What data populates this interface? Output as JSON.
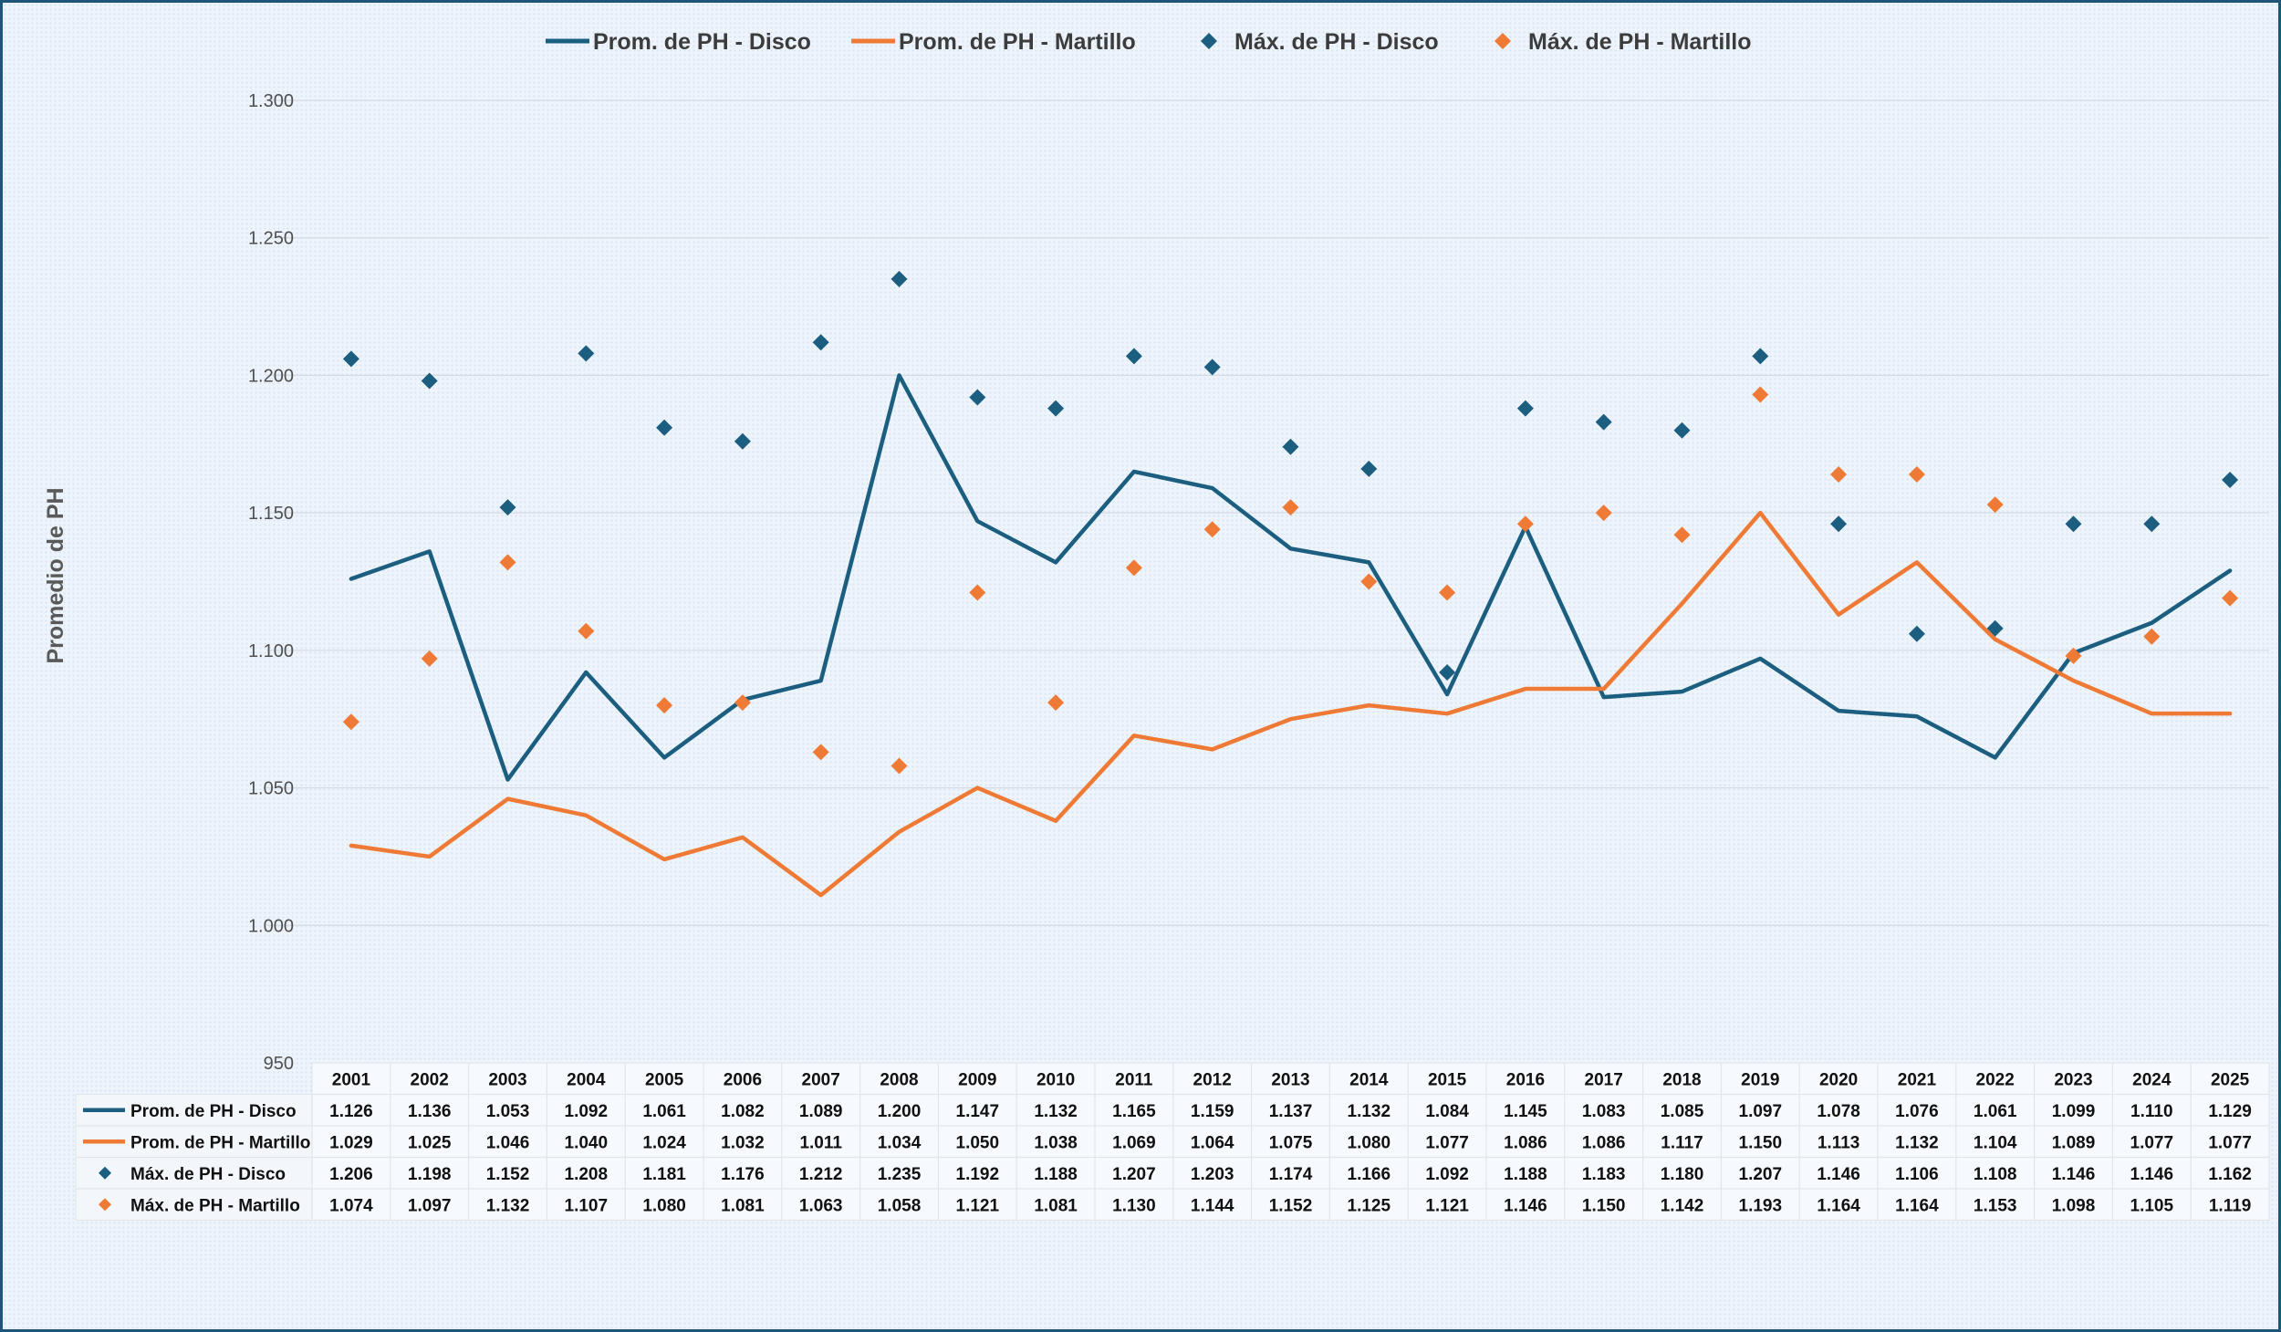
{
  "colors": {
    "disco": "#1c5e80",
    "martillo": "#ef7a35",
    "grid": "#d6dbe1",
    "frame_border": "#1f5577"
  },
  "chart_data": {
    "type": "line",
    "title": "",
    "xlabel": "",
    "ylabel": "Promedio de PH",
    "ylim": [
      950,
      1300
    ],
    "y_ticks": [
      "950",
      "1.000",
      "1.050",
      "1.100",
      "1.150",
      "1.200",
      "1.250",
      "1.300"
    ],
    "y_tick_values": [
      950,
      1000,
      1050,
      1100,
      1150,
      1200,
      1250,
      1300
    ],
    "grid": true,
    "legend_position": "top",
    "categories": [
      "2001",
      "2002",
      "2003",
      "2004",
      "2005",
      "2006",
      "2007",
      "2008",
      "2009",
      "2010",
      "2011",
      "2012",
      "2013",
      "2014",
      "2015",
      "2016",
      "2017",
      "2018",
      "2019",
      "2020",
      "2021",
      "2022",
      "2023",
      "2024",
      "2025"
    ],
    "series": [
      {
        "name": "Prom. de PH - Disco",
        "type": "line",
        "color": "#1c5e80",
        "marker": "none",
        "values": [
          1126,
          1136,
          1053,
          1092,
          1061,
          1082,
          1089,
          1200,
          1147,
          1132,
          1165,
          1159,
          1137,
          1132,
          1084,
          1145,
          1083,
          1085,
          1097,
          1078,
          1076,
          1061,
          1099,
          1110,
          1129
        ],
        "labels": [
          "1.126",
          "1.136",
          "1.053",
          "1.092",
          "1.061",
          "1.082",
          "1.089",
          "1.200",
          "1.147",
          "1.132",
          "1.165",
          "1.159",
          "1.137",
          "1.132",
          "1.084",
          "1.145",
          "1.083",
          "1.085",
          "1.097",
          "1.078",
          "1.076",
          "1.061",
          "1.099",
          "1.110",
          "1.129"
        ]
      },
      {
        "name": "Prom. de PH - Martillo",
        "type": "line",
        "color": "#ef7a35",
        "marker": "none",
        "values": [
          1029,
          1025,
          1046,
          1040,
          1024,
          1032,
          1011,
          1034,
          1050,
          1038,
          1069,
          1064,
          1075,
          1080,
          1077,
          1086,
          1086,
          1117,
          1150,
          1113,
          1132,
          1104,
          1089,
          1077,
          1077
        ],
        "labels": [
          "1.029",
          "1.025",
          "1.046",
          "1.040",
          "1.024",
          "1.032",
          "1.011",
          "1.034",
          "1.050",
          "1.038",
          "1.069",
          "1.064",
          "1.075",
          "1.080",
          "1.077",
          "1.086",
          "1.086",
          "1.117",
          "1.150",
          "1.113",
          "1.132",
          "1.104",
          "1.089",
          "1.077",
          "1.077"
        ]
      },
      {
        "name": "Máx. de PH - Disco",
        "type": "scatter",
        "color": "#1c5e80",
        "marker": "diamond",
        "values": [
          1206,
          1198,
          1152,
          1208,
          1181,
          1176,
          1212,
          1235,
          1192,
          1188,
          1207,
          1203,
          1174,
          1166,
          1092,
          1188,
          1183,
          1180,
          1207,
          1146,
          1106,
          1108,
          1146,
          1146,
          1162
        ],
        "labels": [
          "1.206",
          "1.198",
          "1.152",
          "1.208",
          "1.181",
          "1.176",
          "1.212",
          "1.235",
          "1.192",
          "1.188",
          "1.207",
          "1.203",
          "1.174",
          "1.166",
          "1.092",
          "1.188",
          "1.183",
          "1.180",
          "1.207",
          "1.146",
          "1.106",
          "1.108",
          "1.146",
          "1.146",
          "1.162"
        ]
      },
      {
        "name": "Máx. de PH - Martillo",
        "type": "scatter",
        "color": "#ef7a35",
        "marker": "diamond",
        "values": [
          1074,
          1097,
          1132,
          1107,
          1080,
          1081,
          1063,
          1058,
          1121,
          1081,
          1130,
          1144,
          1152,
          1125,
          1121,
          1146,
          1150,
          1142,
          1193,
          1164,
          1164,
          1153,
          1098,
          1105,
          1119
        ],
        "labels": [
          "1.074",
          "1.097",
          "1.132",
          "1.107",
          "1.080",
          "1.081",
          "1.063",
          "1.058",
          "1.121",
          "1.081",
          "1.130",
          "1.144",
          "1.152",
          "1.125",
          "1.121",
          "1.146",
          "1.150",
          "1.142",
          "1.193",
          "1.164",
          "1.164",
          "1.153",
          "1.098",
          "1.105",
          "1.119"
        ]
      }
    ]
  }
}
